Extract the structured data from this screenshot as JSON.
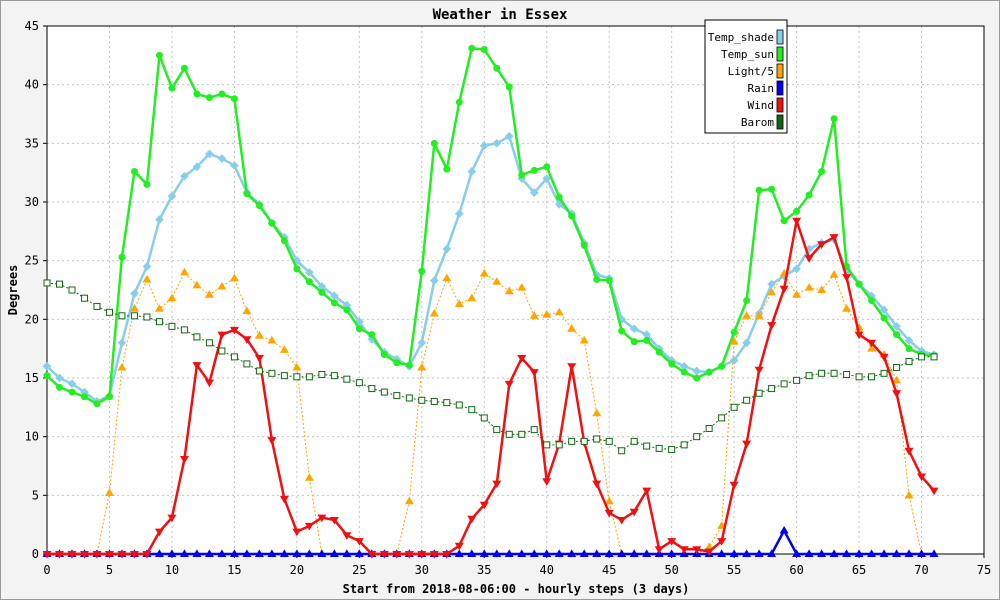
{
  "chart_data": {
    "type": "line",
    "title": "Weather in Essex",
    "xlabel": "Start from 2018-08-06:00 - hourly steps (3 days)",
    "ylabel": "Degrees",
    "xlim": [
      0,
      75
    ],
    "ylim": [
      0,
      45
    ],
    "xticks": [
      0,
      5,
      10,
      15,
      20,
      25,
      30,
      35,
      40,
      45,
      50,
      55,
      60,
      65,
      70,
      75
    ],
    "yticks": [
      0,
      5,
      10,
      15,
      20,
      25,
      30,
      35,
      40,
      45
    ],
    "grid": true,
    "legend_position": "top-right",
    "series": [
      {
        "name": "Temp_shade",
        "color": "#87ceeb",
        "marker": "diamond",
        "values": [
          16.0,
          15.0,
          14.5,
          13.8,
          13.0,
          13.5,
          18.0,
          22.2,
          24.5,
          28.5,
          30.5,
          32.2,
          33.0,
          34.1,
          33.7,
          33.1,
          30.8,
          29.8,
          28.2,
          27.0,
          25.0,
          24.0,
          22.8,
          22.0,
          21.2,
          19.8,
          18.3,
          17.2,
          16.6,
          16.0,
          18.0,
          23.3,
          26.0,
          29.0,
          32.6,
          34.8,
          35.0,
          35.6,
          32.0,
          30.8,
          32.0,
          29.8,
          29.0,
          26.5,
          23.8,
          23.5,
          20.0,
          19.2,
          18.7,
          17.5,
          16.5,
          16.0,
          15.6,
          15.5,
          16.0,
          16.5,
          18.0,
          20.5,
          23.0,
          23.7,
          24.3,
          26.0,
          26.5,
          26.8,
          24.2,
          23.0,
          22.0,
          20.8,
          19.4,
          18.2,
          17.3,
          17.0
        ]
      },
      {
        "name": "Temp_sun",
        "color": "#22ee22",
        "marker": "circle",
        "values": [
          15.2,
          14.2,
          13.8,
          13.4,
          12.8,
          13.4,
          25.3,
          32.6,
          31.5,
          42.5,
          39.7,
          41.4,
          39.2,
          38.9,
          39.2,
          38.8,
          30.7,
          29.7,
          28.2,
          26.7,
          24.3,
          23.2,
          22.3,
          21.4,
          20.8,
          19.2,
          18.7,
          17.0,
          16.3,
          16.1,
          24.1,
          35.0,
          32.8,
          38.5,
          43.1,
          43.0,
          41.4,
          39.8,
          32.3,
          32.7,
          33.0,
          30.4,
          28.8,
          26.3,
          23.4,
          23.3,
          19.0,
          18.1,
          18.2,
          17.2,
          16.2,
          15.5,
          15.0,
          15.5,
          16.0,
          18.9,
          21.6,
          31.0,
          31.1,
          28.4,
          29.2,
          30.6,
          32.6,
          37.1,
          24.5,
          23.0,
          21.6,
          20.1,
          18.7,
          17.5,
          17.0,
          16.9
        ]
      },
      {
        "name": "Light/5",
        "color": "#ffa500",
        "marker": "triangle-up",
        "values": [
          0,
          0,
          0,
          0,
          0,
          5.2,
          15.9,
          20.9,
          23.4,
          20.9,
          21.8,
          24.0,
          22.9,
          22.1,
          22.8,
          23.5,
          20.7,
          18.6,
          18.2,
          17.4,
          15.9,
          6.5,
          0,
          0,
          0,
          0,
          0,
          0,
          0,
          4.5,
          15.9,
          20.5,
          23.5,
          21.3,
          21.8,
          23.9,
          23.2,
          22.4,
          22.7,
          20.3,
          20.4,
          20.6,
          19.2,
          18.2,
          12.0,
          4.5,
          0,
          0,
          0,
          0,
          0,
          0,
          0,
          0.6,
          2.4,
          18.1,
          20.3,
          20.3,
          22.3,
          23.9,
          22.1,
          22.7,
          22.5,
          23.8,
          20.9,
          19.3,
          17.5,
          17.0,
          14.8,
          5.0,
          0,
          0
        ]
      },
      {
        "name": "Rain",
        "color": "#0000ee",
        "marker": "triangle-up",
        "values": [
          0,
          0,
          0,
          0,
          0,
          0,
          0,
          0,
          0,
          0,
          0,
          0,
          0,
          0,
          0,
          0,
          0,
          0,
          0,
          0,
          0,
          0,
          0,
          0,
          0,
          0,
          0,
          0,
          0,
          0,
          0,
          0,
          0,
          0,
          0,
          0,
          0,
          0,
          0,
          0,
          0,
          0,
          0,
          0,
          0,
          0,
          0,
          0,
          0,
          0,
          0,
          0,
          0,
          0,
          0,
          0,
          0,
          0,
          0,
          2.0,
          0,
          0,
          0,
          0,
          0,
          0,
          0,
          0,
          0,
          0,
          0,
          0
        ]
      },
      {
        "name": "Wind",
        "color": "#ee1111",
        "marker": "triangle-down",
        "values": [
          0,
          0,
          0,
          0,
          0,
          0,
          0,
          0,
          0,
          1.9,
          3.1,
          8.1,
          16.1,
          14.6,
          18.7,
          19.1,
          18.3,
          16.7,
          9.7,
          4.7,
          1.9,
          2.4,
          3.1,
          2.9,
          1.6,
          1.1,
          0,
          0,
          0,
          0,
          0,
          0,
          0,
          0.7,
          3.0,
          4.2,
          6.0,
          14.5,
          16.7,
          15.5,
          6.2,
          9.4,
          16.0,
          9.5,
          6.0,
          3.5,
          2.9,
          3.6,
          5.4,
          0.4,
          1.1,
          0.4,
          0.4,
          0.2,
          1.1,
          5.9,
          9.4,
          15.7,
          19.5,
          22.6,
          28.4,
          25.2,
          26.4,
          27.0,
          23.6,
          18.7,
          18.0,
          16.8,
          13.7,
          8.8,
          6.6,
          5.4
        ]
      },
      {
        "name": "Barom",
        "color": "#116611",
        "marker": "square",
        "values": [
          23.1,
          23.0,
          22.5,
          21.8,
          21.1,
          20.6,
          20.3,
          20.3,
          20.2,
          19.8,
          19.4,
          19.1,
          18.5,
          18.0,
          17.3,
          16.8,
          16.2,
          15.6,
          15.4,
          15.2,
          15.1,
          15.1,
          15.3,
          15.2,
          14.9,
          14.6,
          14.1,
          13.8,
          13.5,
          13.3,
          13.1,
          13.0,
          12.9,
          12.7,
          12.3,
          11.6,
          10.6,
          10.2,
          10.2,
          10.6,
          9.3,
          9.3,
          9.6,
          9.6,
          9.8,
          9.6,
          8.8,
          9.6,
          9.2,
          9.0,
          8.9,
          9.3,
          10.0,
          10.7,
          11.6,
          12.5,
          13.1,
          13.7,
          14.1,
          14.5,
          14.8,
          15.2,
          15.4,
          15.4,
          15.3,
          15.1,
          15.1,
          15.4,
          15.9,
          16.4,
          16.8,
          16.8
        ]
      }
    ]
  }
}
